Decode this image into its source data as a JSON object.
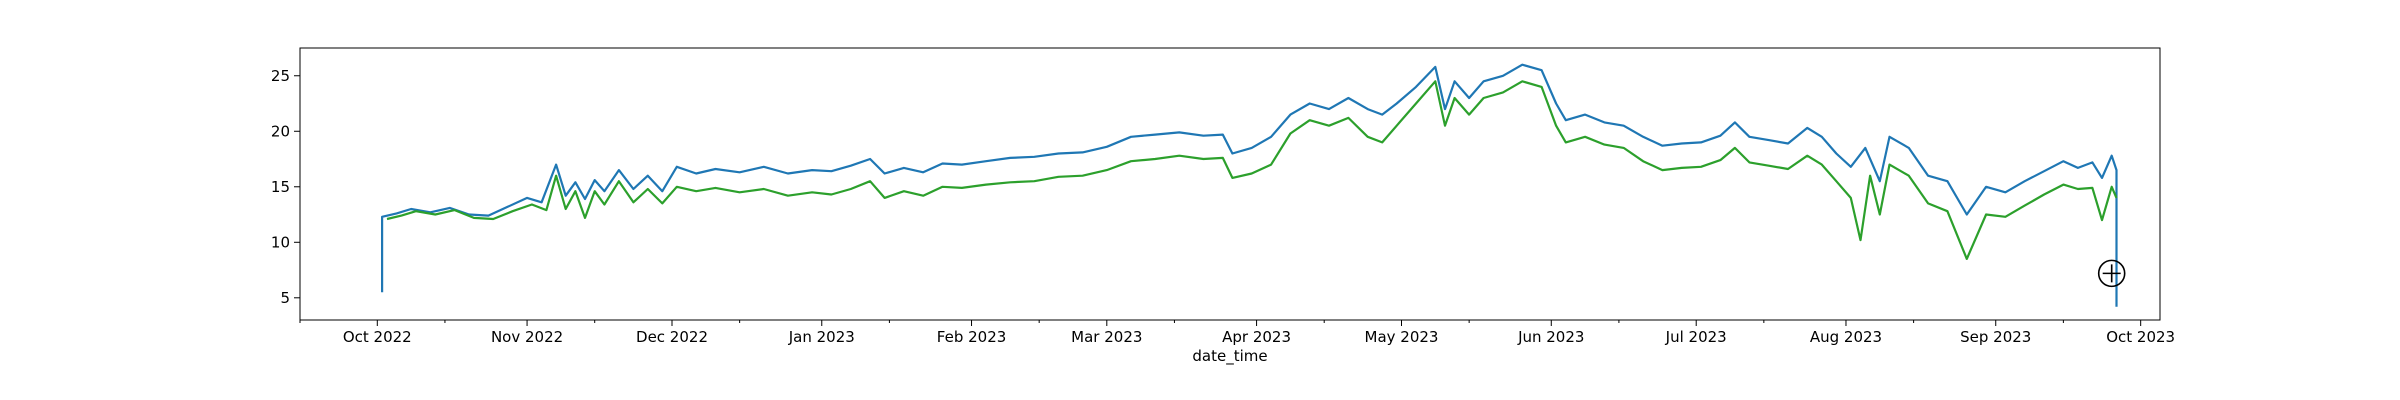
{
  "chart_data": {
    "type": "line",
    "title": "",
    "xlabel": "date_time",
    "ylabel": "",
    "xlim": [
      "2022-09-15",
      "2023-10-05"
    ],
    "ylim": [
      3,
      27.5
    ],
    "grid": false,
    "x_ticks": [
      {
        "date": "2022-10-01",
        "label": "Oct 2022"
      },
      {
        "date": "2022-11-01",
        "label": "Nov 2022"
      },
      {
        "date": "2022-12-01",
        "label": "Dec 2022"
      },
      {
        "date": "2023-01-01",
        "label": "Jan 2023"
      },
      {
        "date": "2023-02-01",
        "label": "Feb 2023"
      },
      {
        "date": "2023-03-01",
        "label": "Mar 2023"
      },
      {
        "date": "2023-04-01",
        "label": "Apr 2023"
      },
      {
        "date": "2023-05-01",
        "label": "May 2023"
      },
      {
        "date": "2023-06-01",
        "label": "Jun 2023"
      },
      {
        "date": "2023-07-01",
        "label": "Jul 2023"
      },
      {
        "date": "2023-08-01",
        "label": "Aug 2023"
      },
      {
        "date": "2023-09-01",
        "label": "Sep 2023"
      },
      {
        "date": "2023-10-01",
        "label": "Oct 2023"
      }
    ],
    "y_ticks": [
      {
        "value": 5,
        "label": "5"
      },
      {
        "value": 10,
        "label": "10"
      },
      {
        "value": 15,
        "label": "15"
      },
      {
        "value": 20,
        "label": "20"
      },
      {
        "value": 25,
        "label": "25"
      }
    ],
    "series": [
      {
        "color": "#1f77b4",
        "points": [
          [
            "2022-10-02",
            5.5
          ],
          [
            "2022-10-02",
            12.3
          ],
          [
            "2022-10-05",
            12.6
          ],
          [
            "2022-10-08",
            13.0
          ],
          [
            "2022-10-12",
            12.7
          ],
          [
            "2022-10-16",
            13.1
          ],
          [
            "2022-10-20",
            12.5
          ],
          [
            "2022-10-24",
            12.4
          ],
          [
            "2022-10-28",
            13.2
          ],
          [
            "2022-11-01",
            14.0
          ],
          [
            "2022-11-04",
            13.6
          ],
          [
            "2022-11-07",
            17.0
          ],
          [
            "2022-11-09",
            14.2
          ],
          [
            "2022-11-11",
            15.4
          ],
          [
            "2022-11-13",
            13.9
          ],
          [
            "2022-11-15",
            15.6
          ],
          [
            "2022-11-17",
            14.6
          ],
          [
            "2022-11-20",
            16.5
          ],
          [
            "2022-11-23",
            14.8
          ],
          [
            "2022-11-26",
            16.0
          ],
          [
            "2022-11-29",
            14.6
          ],
          [
            "2022-12-02",
            16.8
          ],
          [
            "2022-12-06",
            16.2
          ],
          [
            "2022-12-10",
            16.6
          ],
          [
            "2022-12-15",
            16.3
          ],
          [
            "2022-12-20",
            16.8
          ],
          [
            "2022-12-25",
            16.2
          ],
          [
            "2022-12-30",
            16.5
          ],
          [
            "2023-01-03",
            16.4
          ],
          [
            "2023-01-07",
            16.9
          ],
          [
            "2023-01-11",
            17.5
          ],
          [
            "2023-01-14",
            16.2
          ],
          [
            "2023-01-18",
            16.7
          ],
          [
            "2023-01-22",
            16.3
          ],
          [
            "2023-01-26",
            17.1
          ],
          [
            "2023-01-30",
            17.0
          ],
          [
            "2023-02-04",
            17.3
          ],
          [
            "2023-02-09",
            17.6
          ],
          [
            "2023-02-14",
            17.7
          ],
          [
            "2023-02-19",
            18.0
          ],
          [
            "2023-02-24",
            18.1
          ],
          [
            "2023-03-01",
            18.6
          ],
          [
            "2023-03-06",
            19.5
          ],
          [
            "2023-03-11",
            19.7
          ],
          [
            "2023-03-16",
            19.9
          ],
          [
            "2023-03-21",
            19.6
          ],
          [
            "2023-03-25",
            19.7
          ],
          [
            "2023-03-27",
            18.0
          ],
          [
            "2023-03-31",
            18.5
          ],
          [
            "2023-04-04",
            19.5
          ],
          [
            "2023-04-08",
            21.5
          ],
          [
            "2023-04-12",
            22.5
          ],
          [
            "2023-04-16",
            22.0
          ],
          [
            "2023-04-20",
            23.0
          ],
          [
            "2023-04-24",
            22.0
          ],
          [
            "2023-04-27",
            21.5
          ],
          [
            "2023-04-30",
            22.5
          ],
          [
            "2023-05-04",
            24.0
          ],
          [
            "2023-05-08",
            25.8
          ],
          [
            "2023-05-10",
            22.0
          ],
          [
            "2023-05-12",
            24.5
          ],
          [
            "2023-05-15",
            23.0
          ],
          [
            "2023-05-18",
            24.5
          ],
          [
            "2023-05-22",
            25.0
          ],
          [
            "2023-05-26",
            26.0
          ],
          [
            "2023-05-30",
            25.5
          ],
          [
            "2023-06-02",
            22.5
          ],
          [
            "2023-06-04",
            21.0
          ],
          [
            "2023-06-08",
            21.5
          ],
          [
            "2023-06-12",
            20.8
          ],
          [
            "2023-06-16",
            20.5
          ],
          [
            "2023-06-20",
            19.5
          ],
          [
            "2023-06-24",
            18.7
          ],
          [
            "2023-06-28",
            18.9
          ],
          [
            "2023-07-02",
            19.0
          ],
          [
            "2023-07-06",
            19.6
          ],
          [
            "2023-07-09",
            20.8
          ],
          [
            "2023-07-12",
            19.5
          ],
          [
            "2023-07-16",
            19.2
          ],
          [
            "2023-07-20",
            18.9
          ],
          [
            "2023-07-24",
            20.3
          ],
          [
            "2023-07-27",
            19.5
          ],
          [
            "2023-07-30",
            18.0
          ],
          [
            "2023-08-02",
            16.8
          ],
          [
            "2023-08-05",
            18.5
          ],
          [
            "2023-08-08",
            15.5
          ],
          [
            "2023-08-10",
            19.5
          ],
          [
            "2023-08-14",
            18.5
          ],
          [
            "2023-08-18",
            16.0
          ],
          [
            "2023-08-22",
            15.5
          ],
          [
            "2023-08-26",
            12.5
          ],
          [
            "2023-08-30",
            15.0
          ],
          [
            "2023-09-03",
            14.5
          ],
          [
            "2023-09-07",
            15.5
          ],
          [
            "2023-09-11",
            16.4
          ],
          [
            "2023-09-15",
            17.3
          ],
          [
            "2023-09-18",
            16.7
          ],
          [
            "2023-09-21",
            17.2
          ],
          [
            "2023-09-23",
            15.8
          ],
          [
            "2023-09-25",
            17.8
          ],
          [
            "2023-09-26",
            16.5
          ],
          [
            "2023-09-26",
            4.2
          ]
        ]
      },
      {
        "color": "#2ca02c",
        "points": [
          [
            "2022-10-03",
            12.1
          ],
          [
            "2022-10-06",
            12.4
          ],
          [
            "2022-10-09",
            12.8
          ],
          [
            "2022-10-13",
            12.5
          ],
          [
            "2022-10-17",
            12.9
          ],
          [
            "2022-10-21",
            12.2
          ],
          [
            "2022-10-25",
            12.1
          ],
          [
            "2022-10-29",
            12.8
          ],
          [
            "2022-11-02",
            13.4
          ],
          [
            "2022-11-05",
            12.9
          ],
          [
            "2022-11-07",
            16.0
          ],
          [
            "2022-11-09",
            13.0
          ],
          [
            "2022-11-11",
            14.6
          ],
          [
            "2022-11-13",
            12.2
          ],
          [
            "2022-11-15",
            14.6
          ],
          [
            "2022-11-17",
            13.4
          ],
          [
            "2022-11-20",
            15.5
          ],
          [
            "2022-11-23",
            13.6
          ],
          [
            "2022-11-26",
            14.8
          ],
          [
            "2022-11-29",
            13.5
          ],
          [
            "2022-12-02",
            15.0
          ],
          [
            "2022-12-06",
            14.6
          ],
          [
            "2022-12-10",
            14.9
          ],
          [
            "2022-12-15",
            14.5
          ],
          [
            "2022-12-20",
            14.8
          ],
          [
            "2022-12-25",
            14.2
          ],
          [
            "2022-12-30",
            14.5
          ],
          [
            "2023-01-03",
            14.3
          ],
          [
            "2023-01-07",
            14.8
          ],
          [
            "2023-01-11",
            15.5
          ],
          [
            "2023-01-14",
            14.0
          ],
          [
            "2023-01-18",
            14.6
          ],
          [
            "2023-01-22",
            14.2
          ],
          [
            "2023-01-26",
            15.0
          ],
          [
            "2023-01-30",
            14.9
          ],
          [
            "2023-02-04",
            15.2
          ],
          [
            "2023-02-09",
            15.4
          ],
          [
            "2023-02-14",
            15.5
          ],
          [
            "2023-02-19",
            15.9
          ],
          [
            "2023-02-24",
            16.0
          ],
          [
            "2023-03-01",
            16.5
          ],
          [
            "2023-03-06",
            17.3
          ],
          [
            "2023-03-11",
            17.5
          ],
          [
            "2023-03-16",
            17.8
          ],
          [
            "2023-03-21",
            17.5
          ],
          [
            "2023-03-25",
            17.6
          ],
          [
            "2023-03-27",
            15.8
          ],
          [
            "2023-03-31",
            16.2
          ],
          [
            "2023-04-04",
            17.0
          ],
          [
            "2023-04-08",
            19.8
          ],
          [
            "2023-04-12",
            21.0
          ],
          [
            "2023-04-16",
            20.5
          ],
          [
            "2023-04-20",
            21.2
          ],
          [
            "2023-04-24",
            19.5
          ],
          [
            "2023-04-27",
            19.0
          ],
          [
            "2023-04-30",
            20.5
          ],
          [
            "2023-05-04",
            22.5
          ],
          [
            "2023-05-08",
            24.5
          ],
          [
            "2023-05-10",
            20.5
          ],
          [
            "2023-05-12",
            23.0
          ],
          [
            "2023-05-15",
            21.5
          ],
          [
            "2023-05-18",
            23.0
          ],
          [
            "2023-05-22",
            23.5
          ],
          [
            "2023-05-26",
            24.5
          ],
          [
            "2023-05-30",
            24.0
          ],
          [
            "2023-06-02",
            20.5
          ],
          [
            "2023-06-04",
            19.0
          ],
          [
            "2023-06-08",
            19.5
          ],
          [
            "2023-06-12",
            18.8
          ],
          [
            "2023-06-16",
            18.5
          ],
          [
            "2023-06-20",
            17.3
          ],
          [
            "2023-06-24",
            16.5
          ],
          [
            "2023-06-28",
            16.7
          ],
          [
            "2023-07-02",
            16.8
          ],
          [
            "2023-07-06",
            17.4
          ],
          [
            "2023-07-09",
            18.5
          ],
          [
            "2023-07-12",
            17.2
          ],
          [
            "2023-07-16",
            16.9
          ],
          [
            "2023-07-20",
            16.6
          ],
          [
            "2023-07-24",
            17.8
          ],
          [
            "2023-07-27",
            17.0
          ],
          [
            "2023-07-30",
            15.5
          ],
          [
            "2023-08-02",
            14.0
          ],
          [
            "2023-08-04",
            10.2
          ],
          [
            "2023-08-06",
            16.0
          ],
          [
            "2023-08-08",
            12.5
          ],
          [
            "2023-08-10",
            17.0
          ],
          [
            "2023-08-14",
            16.0
          ],
          [
            "2023-08-18",
            13.5
          ],
          [
            "2023-08-22",
            12.8
          ],
          [
            "2023-08-26",
            8.5
          ],
          [
            "2023-08-30",
            12.5
          ],
          [
            "2023-09-03",
            12.3
          ],
          [
            "2023-09-07",
            13.3
          ],
          [
            "2023-09-11",
            14.3
          ],
          [
            "2023-09-15",
            15.2
          ],
          [
            "2023-09-18",
            14.8
          ],
          [
            "2023-09-21",
            14.9
          ],
          [
            "2023-09-23",
            12.0
          ],
          [
            "2023-09-25",
            15.0
          ],
          [
            "2023-09-26",
            14.0
          ]
        ]
      }
    ]
  },
  "cursor": {
    "icon": "crosshair-cursor-icon",
    "date": "2023-09-25",
    "value": 7.2
  }
}
